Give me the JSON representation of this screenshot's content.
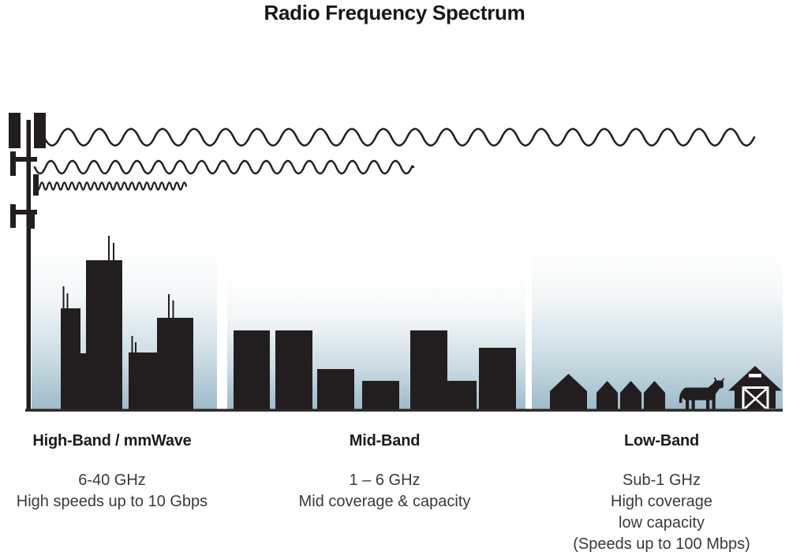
{
  "title": "Radio Frequency Spectrum",
  "bands": [
    {
      "name": "High-Band / mmWave",
      "lines": [
        "6-40 GHz",
        "High speeds up to 10 Gbps"
      ]
    },
    {
      "name": "Mid-Band",
      "lines": [
        "1 – 6 GHz",
        "Mid coverage & capacity"
      ]
    },
    {
      "name": "Low-Band",
      "lines": [
        "Sub-1 GHz",
        "High coverage",
        "low capacity",
        "(Speeds up to 100 Mbps)"
      ]
    }
  ],
  "illustration": {
    "icons": [
      "cell-tower-icon",
      "long-wavelength-wave-icon",
      "medium-wavelength-wave-icon",
      "short-wavelength-wave-icon",
      "city-skyline-icon",
      "midrise-buildings-icon",
      "village-houses-icon",
      "cow-icon",
      "barn-icon"
    ],
    "waves": [
      {
        "wavelength": "long",
        "extends_to": "low-band section"
      },
      {
        "wavelength": "medium",
        "extends_to": "mid-band section"
      },
      {
        "wavelength": "short",
        "extends_to": "high-band section"
      }
    ]
  },
  "colors": {
    "silhouette": "#221e1f",
    "sky_top": "#ffffff",
    "sky_bottom": "#9cbbca",
    "title_text": "#15171c",
    "heading_text": "#1c1c1e",
    "body_text": "#3a3a3a"
  }
}
